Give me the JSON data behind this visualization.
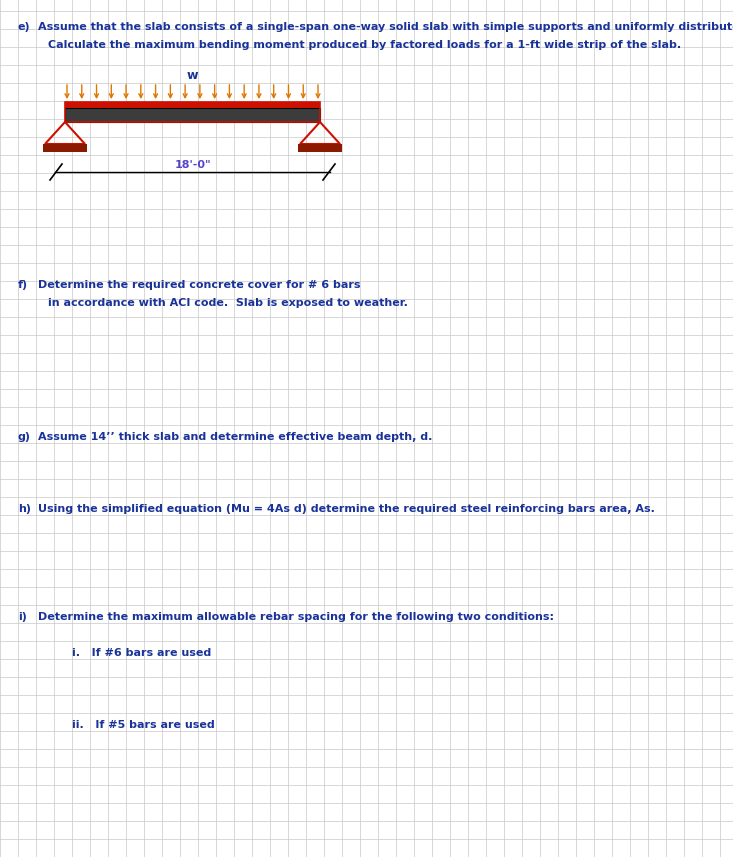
{
  "bg_color": "#ffffff",
  "grid_color": "#c8c8c8",
  "text_color_blue": "#1a3399",
  "fig_width": 7.33,
  "fig_height": 8.57,
  "label_e": "e)",
  "text_e1": "Assume that the slab consists of a single-span one-way solid slab with simple supports and uniformly distributed load.",
  "text_e2": "Calculate the maximum bending moment produced by factored loads for a 1-ft wide strip of the slab.",
  "label_f": "f)",
  "text_f1": "Determine the required concrete cover for # 6 bars",
  "text_f2": "in accordance with ACI code.  Slab is exposed to weather.",
  "label_g": "g)",
  "text_g": "Assume 14’’ thick slab and determine effective beam depth, d.",
  "label_h": "h)",
  "text_h": "Using the simplified equation (Mu = 4As d) determine the required steel reinforcing bars area, As.",
  "label_i": "i)",
  "text_i": "Determine the maximum allowable rebar spacing for the following two conditions:",
  "text_i1": "i.   If #6 bars are used",
  "text_i2": "ii.   If #5 bars are used",
  "span_label": "18'-0\"",
  "w_label": "w",
  "slab_color": "#3c3c3c",
  "slab_top_color": "#cc1100",
  "arrow_color": "#dd7700",
  "support_color": "#cc1100",
  "support_base_color": "#8b1a00",
  "dim_color": "#000000",
  "dim_text_color": "#5544cc"
}
